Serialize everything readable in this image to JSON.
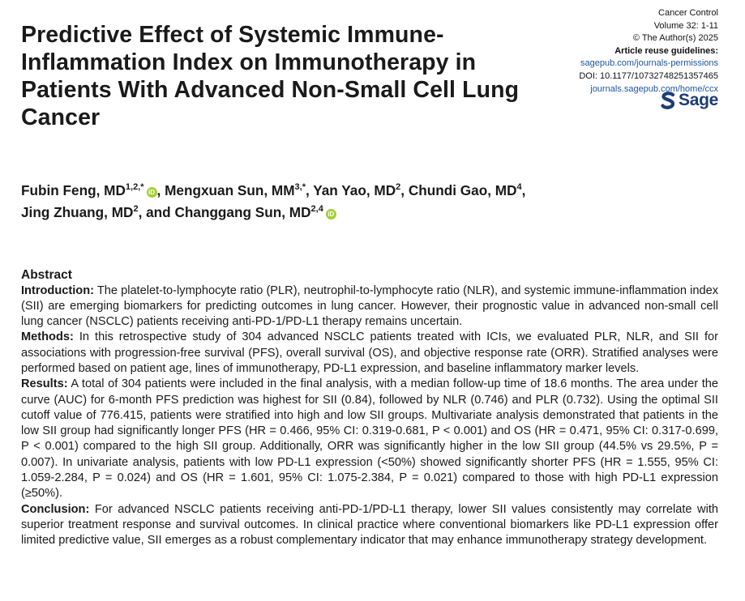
{
  "title": "Predictive Effect of Systemic Immune-Inflammation Index on Immunotherapy in Patients With Advanced Non-Small Cell Lung Cancer",
  "journal": {
    "name": "Cancer Control",
    "volume": "Volume 32: 1-11",
    "copyright": "© The Author(s) 2025",
    "reuse_label": "Article reuse guidelines:",
    "reuse_link": "sagepub.com/journals-permissions",
    "doi": "DOI: 10.1177/10732748251357465",
    "journal_link": "journals.sagepub.com/home/ccx",
    "publisher": "Sage"
  },
  "authors": [
    {
      "name": "Fubin Feng, MD",
      "sup": "1,2,",
      "star": "*",
      "orcid": true,
      "sep": ", "
    },
    {
      "name": "Mengxuan Sun, MM",
      "sup": "3,",
      "star": "*",
      "orcid": false,
      "sep": ", "
    },
    {
      "name": "Yan Yao, MD",
      "sup": "2",
      "star": "",
      "orcid": false,
      "sep": ", "
    },
    {
      "name": "Chundi Gao, MD",
      "sup": "4",
      "star": "",
      "orcid": false,
      "sep": ","
    },
    {
      "name": "Jing Zhuang, MD",
      "sup": "2",
      "star": "",
      "orcid": false,
      "sep": ", and "
    },
    {
      "name": "Changgang Sun, MD",
      "sup": "2,4",
      "star": "",
      "orcid": true,
      "sep": ""
    }
  ],
  "abstract": {
    "heading": "Abstract",
    "sections": [
      {
        "label": "Introduction:",
        "text": "The platelet-to-lymphocyte ratio (PLR), neutrophil-to-lymphocyte ratio (NLR), and systemic immune-inflammation index (SII) are emerging biomarkers for predicting outcomes in lung cancer. However, their prognostic value in advanced non-small cell lung cancer (NSCLC) patients receiving anti-PD-1/PD-L1 therapy remains uncertain."
      },
      {
        "label": "Methods:",
        "text": "In this retrospective study of 304 advanced NSCLC patients treated with ICIs, we evaluated PLR, NLR, and SII for associations with progression-free survival (PFS), overall survival (OS), and objective response rate (ORR). Stratified analyses were performed based on patient age, lines of immunotherapy, PD-L1 expression, and baseline inflammatory marker levels."
      },
      {
        "label": "Results:",
        "text": "A total of 304 patients were included in the final analysis, with a median follow-up time of 18.6 months. The area under the curve (AUC) for 6-month PFS prediction was highest for SII (0.84), followed by NLR (0.746) and PLR (0.732). Using the optimal SII cutoff value of 776.415, patients were stratified into high and low SII groups. Multivariate analysis demonstrated that patients in the low SII group had significantly longer PFS (HR = 0.466, 95% CI: 0.319-0.681, P < 0.001) and OS (HR = 0.471, 95% CI: 0.317-0.699, P < 0.001) compared to the high SII group. Additionally, ORR was significantly higher in the low SII group (44.5% vs 29.5%, P = 0.007). In univariate analysis, patients with low PD-L1 expression (<50%) showed significantly shorter PFS (HR = 1.555, 95% CI: 1.059-2.284, P = 0.024) and OS (HR = 1.601, 95% CI: 1.075-2.384, P = 0.021) compared to those with high PD-L1 expression (≥50%)."
      },
      {
        "label": "Conclusion:",
        "text": "For advanced NSCLC patients receiving anti-PD-1/PD-L1 therapy, lower SII values consistently may correlate with superior treatment response and survival outcomes. In clinical practice where conventional biomarkers like PD-L1 expression offer limited predictive value, SII emerges as a robust complementary indicator that may enhance immunotherapy strategy development."
      }
    ]
  },
  "colors": {
    "link": "#1f55a0",
    "orcid": "#a6ce39",
    "sage_logo": "#1c3c74"
  },
  "icons": {
    "orcid": "orcid-icon",
    "sage": "sage-logo-icon"
  }
}
